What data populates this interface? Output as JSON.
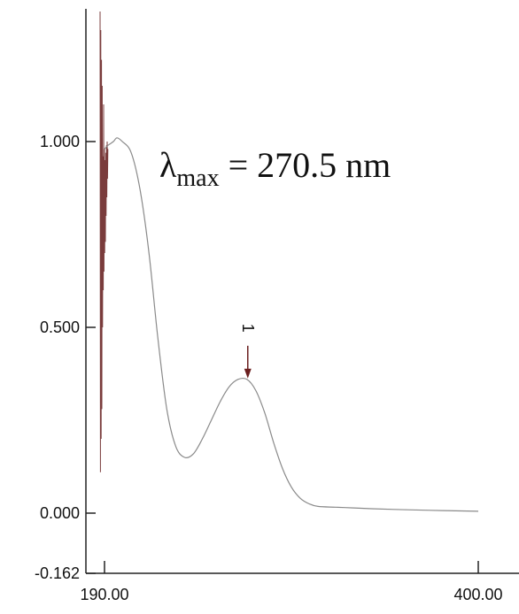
{
  "chart_data": {
    "type": "line",
    "title": "",
    "xlabel": "",
    "ylabel": "",
    "xlim": [
      190.0,
      400.0
    ],
    "ylim": [
      -0.162,
      1.2
    ],
    "grid": false,
    "legend": "none",
    "x_ticks": [
      {
        "value": 190.0,
        "label": "190.00"
      },
      {
        "value": 400.0,
        "label": "400.00"
      }
    ],
    "y_ticks": [
      {
        "value": 1.0,
        "label": "1.000"
      },
      {
        "value": 0.5,
        "label": "0.500"
      },
      {
        "value": 0.0,
        "label": "0.000"
      },
      {
        "value": -0.162,
        "label": "-0.162"
      }
    ],
    "annotation": {
      "symbol": "λ",
      "subscript": "max",
      "text": " = 270.5 nm"
    },
    "peak_marker": {
      "label": "1",
      "x": 270.5,
      "y": 0.36
    },
    "colors": {
      "line": "#8a8a8a",
      "noise": "#7a3c3c",
      "marker": "#6b1f1f",
      "axis": "#222222"
    },
    "series": [
      {
        "x": [
          190,
          192,
          195,
          197,
          200,
          205,
          210,
          215,
          220,
          225,
          230,
          235,
          240,
          245,
          250,
          255,
          260,
          265,
          270,
          275,
          280,
          285,
          290,
          295,
          300,
          305,
          310,
          320,
          330,
          340,
          360,
          380,
          400
        ],
        "values": [
          0.98,
          0.99,
          1.0,
          1.01,
          1.0,
          0.97,
          0.87,
          0.7,
          0.47,
          0.28,
          0.18,
          0.15,
          0.16,
          0.2,
          0.25,
          0.3,
          0.34,
          0.36,
          0.36,
          0.33,
          0.27,
          0.19,
          0.12,
          0.07,
          0.04,
          0.025,
          0.018,
          0.016,
          0.014,
          0.012,
          0.009,
          0.007,
          0.005
        ]
      }
    ],
    "noise": {
      "x": [
        187.5,
        187.7,
        187.9,
        188.1,
        188.3,
        188.5,
        188.7,
        188.9,
        189.1,
        189.3,
        189.5,
        189.7,
        189.9,
        190.1,
        190.3,
        190.5,
        190.7,
        190.9,
        191.1,
        191.3,
        191.5,
        191.7,
        191.9
      ],
      "values": [
        1.35,
        0.11,
        1.3,
        0.2,
        1.22,
        0.28,
        1.15,
        0.5,
        0.96,
        0.6,
        1.1,
        0.65,
        0.98,
        0.7,
        0.95,
        0.73,
        0.97,
        0.8,
        0.99,
        0.85,
        1.0,
        0.9,
        0.98
      ]
    }
  }
}
